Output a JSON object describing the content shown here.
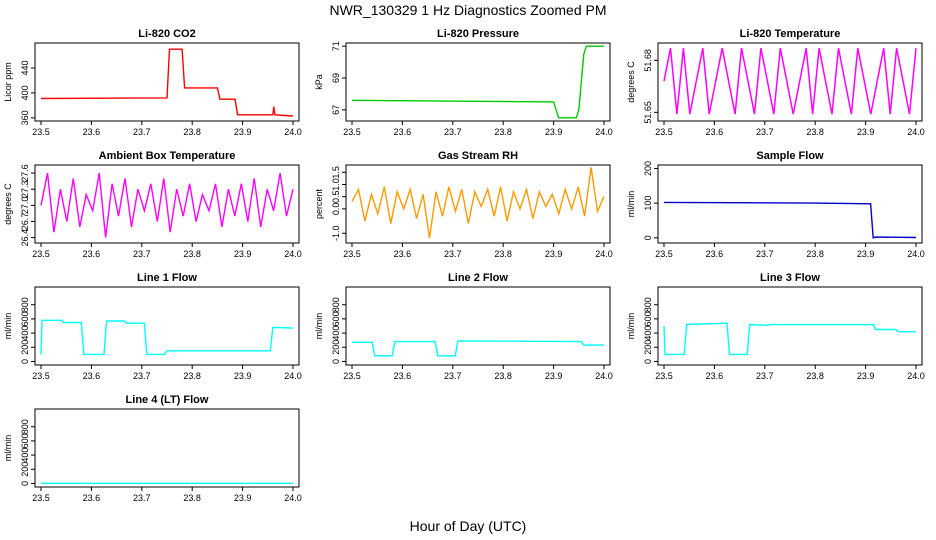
{
  "title": "NWR_130329  1 Hz Diagnostics Zoomed PM",
  "xlabel": "Hour of Day (UTC)",
  "chart_data": [
    {
      "type": "line",
      "title": "Li-820 CO2",
      "ylabel": "Licor ppm",
      "color": "#ff0000",
      "xlim": [
        23.5,
        24.0
      ],
      "ylim": [
        355,
        480
      ],
      "xticks": [
        "23.5",
        "23.6",
        "23.7",
        "23.8",
        "23.9",
        "24.0"
      ],
      "yticks": [
        360,
        400,
        440
      ],
      "x": [
        23.5,
        23.75,
        23.755,
        23.78,
        23.785,
        23.81,
        23.815,
        23.85,
        23.855,
        23.885,
        23.89,
        23.96,
        23.962,
        23.964,
        24.0
      ],
      "y": [
        391,
        392,
        470,
        470,
        408,
        408,
        408,
        408,
        390,
        390,
        365,
        365,
        378,
        365,
        363
      ]
    },
    {
      "type": "line",
      "title": "Li-820 Pressure",
      "ylabel": "kPa",
      "color": "#00cc00",
      "xlim": [
        23.5,
        24.0
      ],
      "ylim": [
        66.3,
        71.2
      ],
      "xticks": [
        "23.5",
        "23.6",
        "23.7",
        "23.8",
        "23.9",
        "24.0"
      ],
      "yticks": [
        67,
        69,
        71
      ],
      "x": [
        23.5,
        23.9,
        23.91,
        23.945,
        23.95,
        23.96,
        23.965,
        24.0
      ],
      "y": [
        67.6,
        67.5,
        66.5,
        66.5,
        67.0,
        70.5,
        71.0,
        71.0
      ]
    },
    {
      "type": "line",
      "title": "Li-820 Temperature",
      "ylabel": "degrees C",
      "color": "#ff00ff",
      "xlim": [
        23.5,
        24.0
      ],
      "ylim": [
        51.645,
        51.69
      ],
      "xticks": [
        "23.5",
        "23.6",
        "23.7",
        "23.8",
        "23.9",
        "24.0"
      ],
      "yticks": [
        51.65,
        51.68
      ],
      "yticklabels": [
        "51.65",
        "51.68"
      ],
      "levels": [
        51.649,
        51.668,
        51.687
      ],
      "y": [
        51.668,
        51.687,
        51.649,
        51.687,
        51.649,
        51.668,
        51.687,
        51.649,
        51.668,
        51.687,
        51.668,
        51.649,
        51.687,
        51.668,
        51.649,
        51.687,
        51.668,
        51.649,
        51.687,
        51.668,
        51.649,
        51.668,
        51.687,
        51.649,
        51.687,
        51.668,
        51.649,
        51.687,
        51.668,
        51.649,
        51.687,
        51.668,
        51.649,
        51.668,
        51.687,
        51.649,
        51.687,
        51.668,
        51.649,
        51.687
      ]
    },
    {
      "type": "line",
      "title": "Ambient Box Temperature",
      "ylabel": "degrees C",
      "color": "#ff00ff",
      "xlim": [
        23.5,
        24.0
      ],
      "ylim": [
        26.3,
        27.75
      ],
      "xticks": [
        "23.5",
        "23.6",
        "23.7",
        "23.8",
        "23.9",
        "24.0"
      ],
      "yticks": [
        26.4,
        26.7,
        27.0,
        27.3,
        27.6
      ],
      "yticklabels": [
        "26.4",
        "26.7",
        "27.0",
        "27.3",
        "27.6"
      ],
      "y": [
        27.0,
        27.6,
        26.5,
        27.3,
        26.7,
        27.5,
        26.6,
        27.2,
        26.9,
        27.6,
        26.4,
        27.4,
        26.8,
        27.5,
        26.6,
        27.3,
        26.9,
        27.4,
        26.7,
        27.5,
        26.5,
        27.3,
        26.8,
        27.4,
        26.7,
        27.2,
        26.9,
        27.4,
        26.6,
        27.3,
        26.8,
        27.4,
        26.7,
        27.5,
        26.6,
        27.3,
        26.9,
        27.6,
        26.8,
        27.3
      ],
      "x_first": 23.5,
      "x_last": 24.0
    },
    {
      "type": "line",
      "title": "Gas Stream RH",
      "ylabel": "percent",
      "color": "#ff9900",
      "xlim": [
        23.5,
        24.0
      ],
      "ylim": [
        -1.4,
        1.8
      ],
      "xticks": [
        "23.5",
        "23.6",
        "23.7",
        "23.8",
        "23.9",
        "24.0"
      ],
      "yticks": [
        -1.0,
        0.0,
        0.5,
        1.0,
        1.5
      ],
      "yticklabels": [
        "-1.0",
        "0.0",
        "0.5",
        "1.0",
        "1.5"
      ],
      "y": [
        0.3,
        0.8,
        -0.5,
        0.6,
        -0.2,
        0.9,
        -0.6,
        0.7,
        0.0,
        0.8,
        -0.4,
        0.6,
        -1.2,
        0.7,
        -0.3,
        0.9,
        -0.1,
        0.8,
        -0.6,
        0.7,
        0.1,
        0.8,
        -0.3,
        0.9,
        -0.5,
        0.7,
        0.0,
        0.8,
        -0.4,
        0.7,
        0.1,
        0.6,
        -0.2,
        0.8,
        0.0,
        0.9,
        -0.3,
        1.7,
        -0.1,
        0.5
      ],
      "x_first": 23.5,
      "x_last": 24.0
    },
    {
      "type": "line",
      "title": "Sample Flow",
      "ylabel": "ml/min",
      "color": "#0000cc",
      "xlim": [
        23.5,
        24.0
      ],
      "ylim": [
        -15,
        210
      ],
      "xticks": [
        "23.5",
        "23.6",
        "23.7",
        "23.8",
        "23.9",
        "24.0"
      ],
      "yticks": [
        0,
        100,
        200
      ],
      "x": [
        23.5,
        23.8,
        23.91,
        23.915,
        23.92,
        24.0
      ],
      "y": [
        102,
        100,
        98,
        0,
        2,
        1
      ]
    },
    {
      "type": "line",
      "title": "Line 1 Flow",
      "ylabel": "ml/min",
      "color": "#00ffff",
      "xlim": [
        23.5,
        24.0
      ],
      "ylim": [
        -50,
        1050
      ],
      "xticks": [
        "23.5",
        "23.6",
        "23.7",
        "23.8",
        "23.9",
        "24.0"
      ],
      "yticks": [
        0,
        200,
        400,
        600,
        800
      ],
      "x": [
        23.5,
        23.502,
        23.54,
        23.545,
        23.58,
        23.585,
        23.625,
        23.63,
        23.665,
        23.67,
        23.705,
        23.71,
        23.745,
        23.75,
        23.955,
        23.96,
        24.0
      ],
      "y": [
        100,
        580,
        580,
        550,
        550,
        100,
        100,
        570,
        570,
        540,
        540,
        100,
        100,
        150,
        150,
        480,
        470
      ]
    },
    {
      "type": "line",
      "title": "Line 2 Flow",
      "ylabel": "ml/min",
      "color": "#00ffff",
      "xlim": [
        23.5,
        24.0
      ],
      "ylim": [
        -50,
        1050
      ],
      "xticks": [
        "23.5",
        "23.6",
        "23.7",
        "23.8",
        "23.9",
        "24.0"
      ],
      "yticks": [
        0,
        200,
        400,
        600,
        800
      ],
      "x": [
        23.5,
        23.54,
        23.545,
        23.58,
        23.585,
        23.665,
        23.67,
        23.705,
        23.71,
        23.955,
        23.96,
        24.0
      ],
      "y": [
        270,
        270,
        80,
        80,
        280,
        280,
        80,
        80,
        290,
        280,
        230,
        230
      ]
    },
    {
      "type": "line",
      "title": "Line 3 Flow",
      "ylabel": "ml/min",
      "color": "#00ffff",
      "xlim": [
        23.5,
        24.0
      ],
      "ylim": [
        -50,
        1050
      ],
      "xticks": [
        "23.5",
        "23.6",
        "23.7",
        "23.8",
        "23.9",
        "24.0"
      ],
      "yticks": [
        0,
        200,
        400,
        600,
        800
      ],
      "x": [
        23.5,
        23.502,
        23.54,
        23.545,
        23.625,
        23.63,
        23.665,
        23.67,
        23.705,
        23.71,
        23.915,
        23.92,
        23.96,
        23.965,
        24.0
      ],
      "y": [
        500,
        100,
        100,
        520,
        540,
        100,
        100,
        520,
        510,
        520,
        520,
        450,
        450,
        420,
        420
      ]
    },
    {
      "type": "line",
      "title": "Line 4 (LT) Flow",
      "ylabel": "ml/min",
      "color": "#00ffff",
      "xlim": [
        23.5,
        24.0
      ],
      "ylim": [
        -50,
        1050
      ],
      "xticks": [
        "23.5",
        "23.6",
        "23.7",
        "23.8",
        "23.9",
        "24.0"
      ],
      "yticks": [
        0,
        200,
        400,
        600,
        800
      ],
      "x": [
        23.5,
        24.0
      ],
      "y": [
        2,
        2
      ]
    }
  ]
}
